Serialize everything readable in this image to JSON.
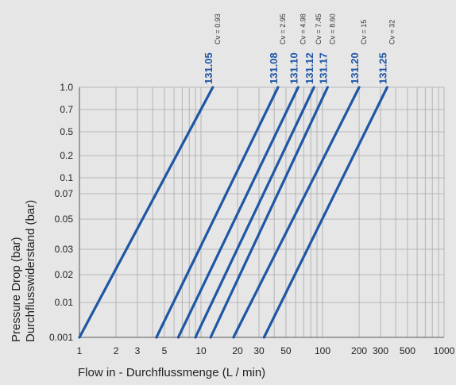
{
  "chart_data": {
    "type": "line",
    "x_scale": "log",
    "y_scale": "custom",
    "xlabel": "Flow in - Durchflussmenge (L / min)",
    "ylabel": [
      "Pressure Drop (bar)",
      "Durchflusswiderstand (bar)"
    ],
    "x_ticks": [
      {
        "value": 1,
        "label": "1"
      },
      {
        "value": 2,
        "label": "2"
      },
      {
        "value": 3,
        "label": "3"
      },
      {
        "value": 5,
        "label": "5"
      },
      {
        "value": 10,
        "label": "10"
      },
      {
        "value": 20,
        "label": "20"
      },
      {
        "value": 30,
        "label": "30"
      },
      {
        "value": 50,
        "label": "50"
      },
      {
        "value": 100,
        "label": "100"
      },
      {
        "value": 200,
        "label": "200"
      },
      {
        "value": 300,
        "label": "300"
      },
      {
        "value": 500,
        "label": "500"
      },
      {
        "value": 1000,
        "label": "1000"
      }
    ],
    "y_ticks": [
      {
        "value": 0.001,
        "label": "0.001"
      },
      {
        "value": 0.01,
        "label": "0.01"
      },
      {
        "value": 0.02,
        "label": "0.02"
      },
      {
        "value": 0.03,
        "label": "0.03"
      },
      {
        "value": 0.05,
        "label": "0.05"
      },
      {
        "value": 0.07,
        "label": "0.07"
      },
      {
        "value": 0.1,
        "label": "0.1"
      },
      {
        "value": 0.2,
        "label": "0.2"
      },
      {
        "value": 0.5,
        "label": "0.5"
      },
      {
        "value": 0.7,
        "label": "0.7"
      },
      {
        "value": 1.0,
        "label": "1.0"
      }
    ],
    "xlim": [
      1,
      1000
    ],
    "ylim": [
      0.001,
      1.0
    ],
    "grid": true,
    "line_color": "#1f56a5",
    "series": [
      {
        "name": "131.05",
        "cv": "Cv = 0.93",
        "points": [
          [
            1,
            0.001
          ],
          [
            12.5,
            1.0
          ]
        ]
      },
      {
        "name": "131.08",
        "cv": "Cv = 2.95",
        "points": [
          [
            4.3,
            0.001
          ],
          [
            43,
            1.0
          ]
        ]
      },
      {
        "name": "131.10",
        "cv": "Cv = 4.98",
        "points": [
          [
            6.5,
            0.001
          ],
          [
            63,
            1.0
          ]
        ]
      },
      {
        "name": "131.12",
        "cv": "Cv = 7.45",
        "points": [
          [
            9,
            0.001
          ],
          [
            85,
            1.0
          ]
        ]
      },
      {
        "name": "131.17",
        "cv": "Cv = 8.60",
        "points": [
          [
            12,
            0.001
          ],
          [
            110,
            1.0
          ]
        ]
      },
      {
        "name": "131.20",
        "cv": "Cv = 15",
        "points": [
          [
            18.5,
            0.001
          ],
          [
            200,
            1.0
          ]
        ]
      },
      {
        "name": "131.25",
        "cv": "Cv = 32",
        "points": [
          [
            33,
            0.001
          ],
          [
            340,
            1.0
          ]
        ]
      }
    ]
  }
}
